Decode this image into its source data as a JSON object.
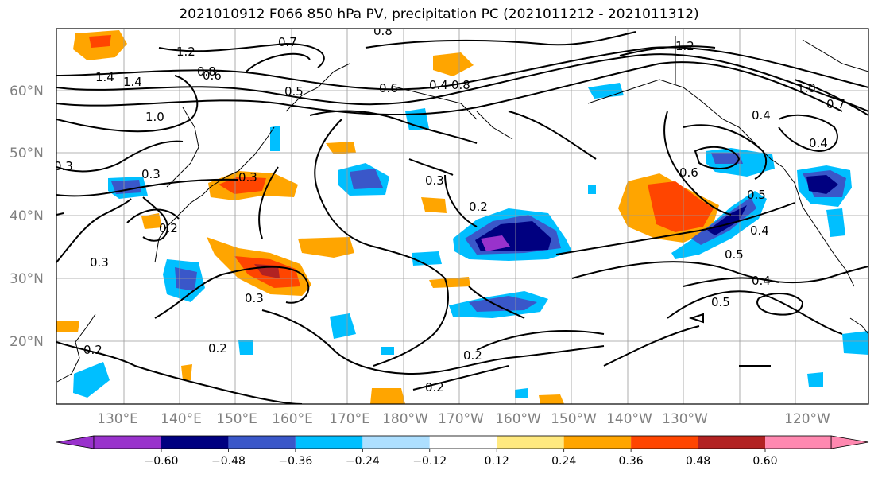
{
  "title": "2021010912 F066 850 hPa PV, precipitation PC (2021011212 - 2021011312)",
  "lat_labels": [
    "60°N",
    "50°N",
    "40°N",
    "30°N",
    "20°N"
  ],
  "lon_labels": [
    "130°E",
    "140°E",
    "150°E",
    "160°E",
    "170°E",
    "180°W",
    "170°W",
    "160°W",
    "150°W",
    "140°W",
    "130°W",
    "120°W"
  ],
  "colorbar": {
    "ticks": [
      "−0.60",
      "−0.48",
      "−0.36",
      "−0.24",
      "−0.12",
      "0.12",
      "0.24",
      "0.36",
      "0.48",
      "0.60"
    ],
    "colors": [
      "#9932CC",
      "#000080",
      "#3A57C9",
      "#00BFFF",
      "#ADDFFF",
      "#FFFFFF",
      "#FFE97F",
      "#FFA500",
      "#FF4500",
      "#B22222",
      "#FF88B0"
    ]
  },
  "contour_labels": [
    "1.2",
    "1.4",
    "1.4",
    "1.0",
    "0.8",
    "0.7",
    "0.5",
    "0.6",
    "0.8",
    "0.8",
    "1.2",
    "1.0",
    "0.7",
    "0.4",
    "0.4",
    "0.6",
    "0.5",
    "0.4",
    "0.5",
    "0.4",
    "0.5",
    "0.3",
    "0.3",
    "0.3",
    "0.2",
    "0.3",
    "0.2",
    "0.2",
    "0.2",
    "0.2",
    "0.3",
    "0.2",
    "0.6",
    "0.3",
    "0.4"
  ]
}
